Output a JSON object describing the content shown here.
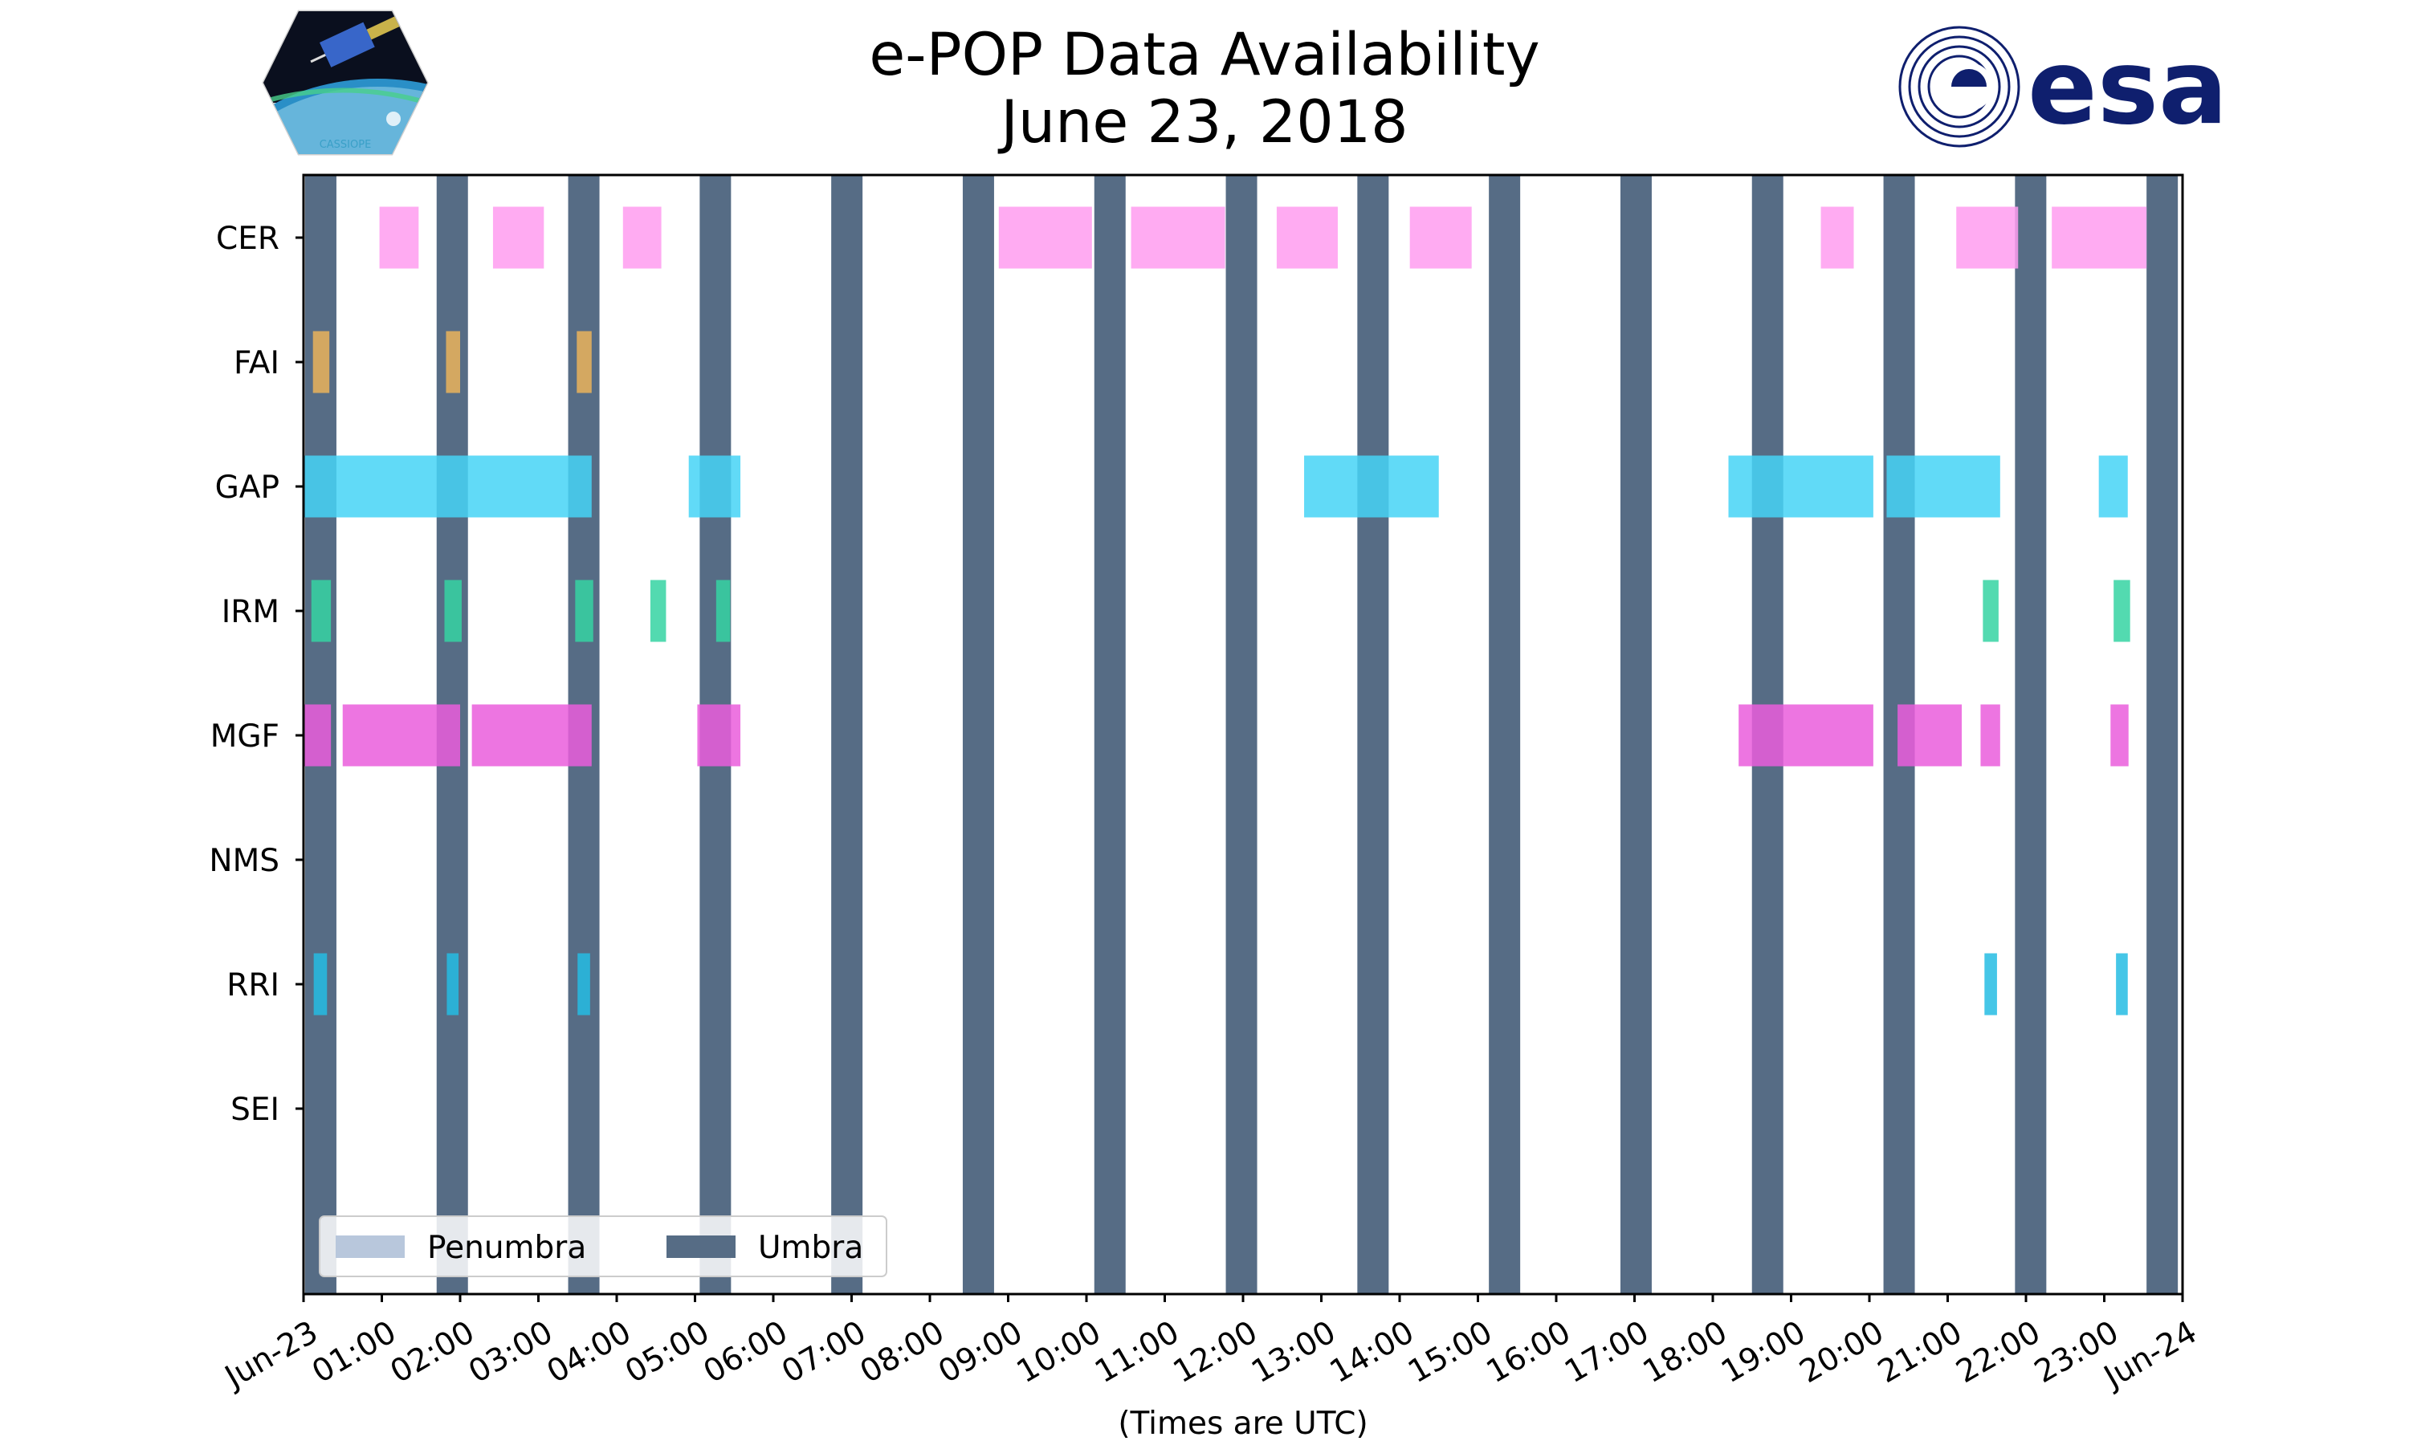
{
  "chart_data": {
    "type": "timeline",
    "title": "e-POP Data Availability",
    "subtitle": "June 23, 2018",
    "xlabel": "(Times are UTC)",
    "x_unit": "hours UTC",
    "xlim": [
      0,
      24
    ],
    "x_ticks": [
      {
        "v": 0,
        "label": "Jun-23"
      },
      {
        "v": 1,
        "label": "01:00"
      },
      {
        "v": 2,
        "label": "02:00"
      },
      {
        "v": 3,
        "label": "03:00"
      },
      {
        "v": 4,
        "label": "04:00"
      },
      {
        "v": 5,
        "label": "05:00"
      },
      {
        "v": 6,
        "label": "06:00"
      },
      {
        "v": 7,
        "label": "07:00"
      },
      {
        "v": 8,
        "label": "08:00"
      },
      {
        "v": 9,
        "label": "09:00"
      },
      {
        "v": 10,
        "label": "10:00"
      },
      {
        "v": 11,
        "label": "11:00"
      },
      {
        "v": 12,
        "label": "12:00"
      },
      {
        "v": 13,
        "label": "13:00"
      },
      {
        "v": 14,
        "label": "14:00"
      },
      {
        "v": 15,
        "label": "15:00"
      },
      {
        "v": 16,
        "label": "16:00"
      },
      {
        "v": 17,
        "label": "17:00"
      },
      {
        "v": 18,
        "label": "18:00"
      },
      {
        "v": 19,
        "label": "19:00"
      },
      {
        "v": 20,
        "label": "20:00"
      },
      {
        "v": 21,
        "label": "21:00"
      },
      {
        "v": 22,
        "label": "22:00"
      },
      {
        "v": 23,
        "label": "23:00"
      },
      {
        "v": 24,
        "label": "Jun-24"
      }
    ],
    "instruments": [
      "CER",
      "FAI",
      "GAP",
      "IRM",
      "MGF",
      "NMS",
      "RRI",
      "SEI"
    ],
    "colors": {
      "CER": "#ff9cf0",
      "FAI": "#eab35a",
      "GAP": "#45d4f6",
      "IRM": "#35d3a2",
      "MGF": "#ea5ddc",
      "NMS": "#888888",
      "RRI": "#25bce3",
      "SEI": "#888888",
      "umbra": "#566c85",
      "penumbra": "#b8c7dc"
    },
    "umbra": [
      [
        0.02,
        0.42
      ],
      [
        1.7,
        2.1
      ],
      [
        3.38,
        3.78
      ],
      [
        5.06,
        5.46
      ],
      [
        6.74,
        7.14
      ],
      [
        8.42,
        8.82
      ],
      [
        10.1,
        10.5
      ],
      [
        11.78,
        12.18
      ],
      [
        13.46,
        13.86
      ],
      [
        15.14,
        15.54
      ],
      [
        16.82,
        17.22
      ],
      [
        18.5,
        18.9
      ],
      [
        20.18,
        20.58
      ],
      [
        21.86,
        22.26
      ],
      [
        23.54,
        23.94
      ]
    ],
    "penumbra": [],
    "series": [
      {
        "name": "CER",
        "intervals": [
          [
            0.97,
            1.47
          ],
          [
            2.42,
            3.07
          ],
          [
            4.08,
            4.57
          ],
          [
            8.88,
            10.07
          ],
          [
            10.57,
            11.77
          ],
          [
            12.43,
            13.21
          ],
          [
            14.13,
            14.92
          ],
          [
            19.38,
            19.8
          ],
          [
            21.11,
            21.9
          ],
          [
            22.33,
            23.54
          ]
        ]
      },
      {
        "name": "FAI",
        "intervals": [
          [
            0.12,
            0.33
          ],
          [
            1.82,
            2.0
          ],
          [
            3.49,
            3.68
          ]
        ]
      },
      {
        "name": "GAP",
        "intervals": [
          [
            0.0,
            3.68
          ],
          [
            4.92,
            5.58
          ],
          [
            12.78,
            14.5
          ],
          [
            18.2,
            20.05
          ],
          [
            20.22,
            21.67
          ],
          [
            22.93,
            23.3
          ]
        ]
      },
      {
        "name": "IRM",
        "intervals": [
          [
            0.1,
            0.35
          ],
          [
            1.8,
            2.02
          ],
          [
            3.47,
            3.7
          ],
          [
            4.43,
            4.63
          ],
          [
            5.27,
            5.45
          ],
          [
            21.45,
            21.65
          ],
          [
            23.12,
            23.33
          ]
        ]
      },
      {
        "name": "MGF",
        "intervals": [
          [
            0.0,
            0.35
          ],
          [
            0.5,
            2.0
          ],
          [
            2.15,
            3.68
          ],
          [
            5.03,
            5.58
          ],
          [
            18.33,
            20.05
          ],
          [
            20.36,
            21.18
          ],
          [
            21.42,
            21.67
          ],
          [
            23.08,
            23.31
          ]
        ]
      },
      {
        "name": "NMS",
        "intervals": []
      },
      {
        "name": "RRI",
        "intervals": [
          [
            0.13,
            0.3
          ],
          [
            1.83,
            1.98
          ],
          [
            3.5,
            3.66
          ],
          [
            21.47,
            21.63
          ],
          [
            23.15,
            23.3
          ]
        ]
      },
      {
        "name": "SEI",
        "intervals": []
      }
    ],
    "legend": {
      "placement": "lower-left",
      "entries": [
        {
          "name": "Penumbra",
          "key": "penumbra"
        },
        {
          "name": "Umbra",
          "key": "umbra"
        }
      ]
    },
    "grid": false
  },
  "logos": {
    "left_icon": "cassiope-mission-logo",
    "left_text": "CASSIOPE",
    "right_icon": "esa-logo",
    "right_text": "esa",
    "right_color": "#0f1f6e"
  }
}
